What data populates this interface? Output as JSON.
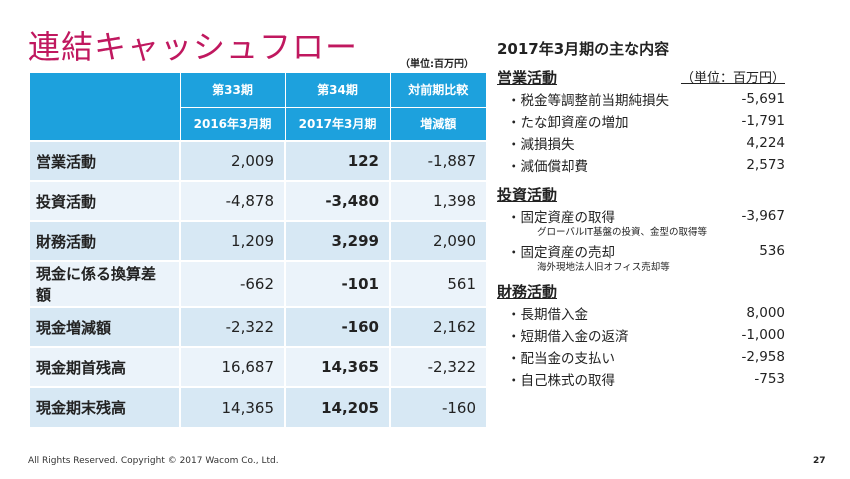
{
  "title": "連結キャッシュフロー",
  "unit": "（単位:百万円）",
  "table": {
    "headers1": [
      "第33期",
      "第34期",
      "対前期比較"
    ],
    "headers2": [
      "2016年3月期",
      "2017年3月期",
      "増減額"
    ],
    "rows": [
      {
        "label": "営業活動",
        "v1": "2,009",
        "v2": "122",
        "v3": "-1,887"
      },
      {
        "label": "投資活動",
        "v1": "-4,878",
        "v2": "-3,480",
        "v3": "1,398"
      },
      {
        "label": "財務活動",
        "v1": "1,209",
        "v2": "3,299",
        "v3": "2,090"
      },
      {
        "label": "現金に係る換算差額",
        "v1": "-662",
        "v2": "-101",
        "v3": "561"
      },
      {
        "label": "現金増減額",
        "v1": "-2,322",
        "v2": "-160",
        "v3": "2,162"
      },
      {
        "label": "現金期首残高",
        "v1": "16,687",
        "v2": "14,365",
        "v3": "-2,322"
      },
      {
        "label": "現金期末残高",
        "v1": "14,365",
        "v2": "14,205",
        "v3": "-160"
      }
    ]
  },
  "right": {
    "title": "2017年3月期の主な内容",
    "unit": "（単位：百万円）",
    "sections": [
      {
        "title": "営業活動",
        "items": [
          {
            "label": "・税金等調整前当期純損失",
            "value": "-5,691"
          },
          {
            "label": "・たな卸資産の増加",
            "value": "-1,791"
          },
          {
            "label": "・減損損失",
            "value": "4,224"
          },
          {
            "label": "・減価償却費",
            "value": "2,573"
          }
        ]
      },
      {
        "title": "投資活動",
        "items": [
          {
            "label": "・固定資産の取得",
            "value": "-3,967",
            "note": "グローバルIT基盤の投資、金型の取得等"
          },
          {
            "label": "・固定資産の売却",
            "value": "536",
            "note": "海外現地法人旧オフィス売却等"
          }
        ]
      },
      {
        "title": "財務活動",
        "items": [
          {
            "label": "・長期借入金",
            "value": "8,000"
          },
          {
            "label": "・短期借入金の返済",
            "value": "-1,000"
          },
          {
            "label": "・配当金の支払い",
            "value": "-2,958"
          },
          {
            "label": "・自己株式の取得",
            "value": "-753"
          }
        ]
      }
    ]
  },
  "footer": "All Rights Reserved. Copyright © 2017 Wacom Co., Ltd.",
  "page": "27"
}
